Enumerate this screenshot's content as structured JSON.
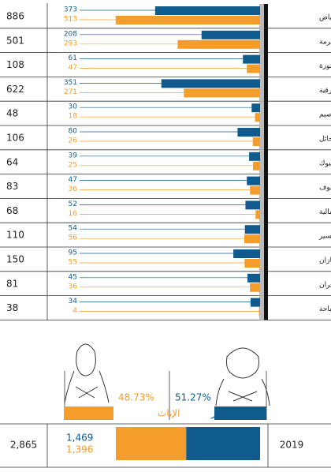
{
  "chart_data": {
    "type": "bar",
    "orientation": "horizontal",
    "categories": [
      "الرياض",
      "مكة المكرمة",
      "المدينة المنورة",
      "المنطقة الشرقية",
      "القصيم",
      "حائل",
      "تبوك",
      "الجوف",
      "الحدود الشمالية",
      "عسير",
      "جازان",
      "نجران",
      "الباحة"
    ],
    "series": [
      {
        "name": "الذكور",
        "color": "#0f5b8d",
        "values": [
          373,
          208,
          61,
          351,
          30,
          80,
          39,
          47,
          52,
          54,
          95,
          45,
          34
        ]
      },
      {
        "name": "الإناث",
        "color": "#f59d2a",
        "values": [
          513,
          293,
          47,
          271,
          18,
          26,
          25,
          36,
          16,
          56,
          55,
          36,
          4
        ]
      }
    ],
    "totals": [
      886,
      501,
      108,
      622,
      48,
      106,
      64,
      83,
      68,
      110,
      150,
      81,
      38
    ],
    "summary": {
      "year": "2019",
      "total": 2865,
      "total_label": "2,865",
      "values": [
        1469,
        1396
      ],
      "value_labels": [
        "1,469",
        "1,396"
      ],
      "shares": [
        51.27,
        48.73
      ],
      "share_labels": [
        "51.27%",
        "48.73%"
      ]
    }
  }
}
